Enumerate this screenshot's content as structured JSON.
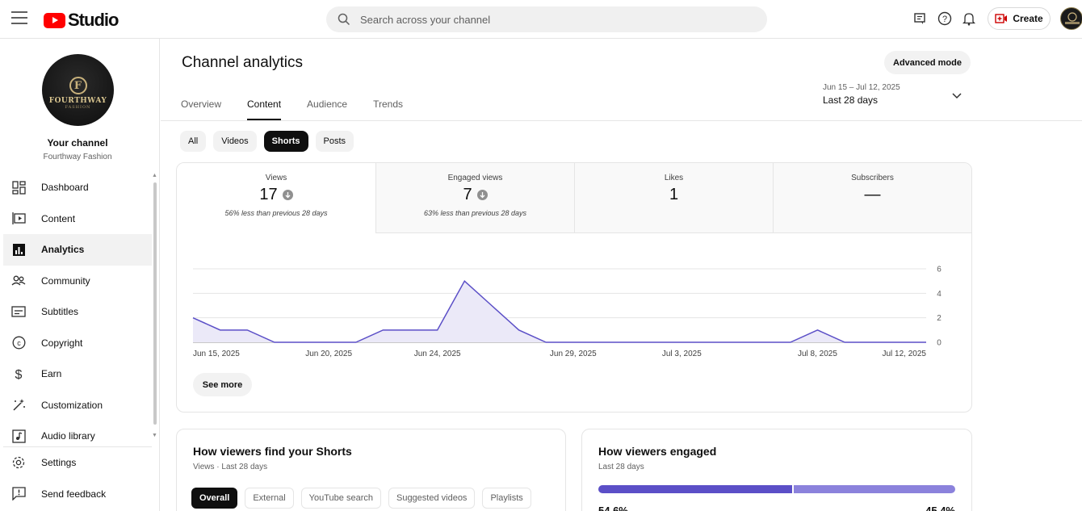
{
  "app": {
    "logo_text": "Studio"
  },
  "search": {
    "placeholder": "Search across your channel"
  },
  "topbar": {
    "create_label": "Create"
  },
  "sidebar": {
    "avatar": {
      "initial": "F",
      "name": "FOURTHWAY",
      "sub": "FASHION"
    },
    "your_channel": "Your channel",
    "channel_name": "Fourthway Fashion",
    "items": [
      {
        "label": "Dashboard",
        "icon": "dashboard-icon"
      },
      {
        "label": "Content",
        "icon": "content-icon"
      },
      {
        "label": "Analytics",
        "icon": "analytics-icon"
      },
      {
        "label": "Community",
        "icon": "community-icon"
      },
      {
        "label": "Subtitles",
        "icon": "subtitles-icon"
      },
      {
        "label": "Copyright",
        "icon": "copyright-icon"
      },
      {
        "label": "Earn",
        "icon": "earn-icon"
      },
      {
        "label": "Customization",
        "icon": "customization-icon"
      },
      {
        "label": "Audio library",
        "icon": "audio-library-icon"
      }
    ],
    "bottom": [
      {
        "label": "Settings",
        "icon": "settings-icon"
      },
      {
        "label": "Send feedback",
        "icon": "feedback-icon"
      }
    ]
  },
  "main": {
    "title": "Channel analytics",
    "advanced_mode": "Advanced mode",
    "tabs": [
      "Overview",
      "Content",
      "Audience",
      "Trends"
    ],
    "date_range": {
      "range": "Jun 15 – Jul 12, 2025",
      "label": "Last 28 days"
    },
    "content_chips": [
      "All",
      "Videos",
      "Shorts",
      "Posts"
    ],
    "metrics": [
      {
        "label": "Views",
        "value": "17",
        "note": "56% less than previous 28 days"
      },
      {
        "label": "Engaged views",
        "value": "7",
        "note": "63% less than previous 28 days"
      },
      {
        "label": "Likes",
        "value": "1",
        "note": ""
      },
      {
        "label": "Subscribers",
        "value": "—",
        "note": ""
      }
    ],
    "see_more": "See more"
  },
  "chart_data": {
    "type": "area",
    "x": [
      "Jun 15, 2025",
      "Jun 16",
      "Jun 17",
      "Jun 18",
      "Jun 19",
      "Jun 20, 2025",
      "Jun 21",
      "Jun 22",
      "Jun 23",
      "Jun 24, 2025",
      "Jun 25",
      "Jun 26",
      "Jun 27",
      "Jun 28",
      "Jun 29, 2025",
      "Jun 30",
      "Jul 1",
      "Jul 2",
      "Jul 3, 2025",
      "Jul 4",
      "Jul 5",
      "Jul 6",
      "Jul 7",
      "Jul 8, 2025",
      "Jul 9",
      "Jul 10",
      "Jul 11",
      "Jul 12, 2025"
    ],
    "values": [
      2,
      1,
      1,
      0,
      0,
      0,
      0,
      1,
      1,
      1,
      5,
      3,
      1,
      0,
      0,
      0,
      0,
      0,
      0,
      0,
      0,
      0,
      0,
      1,
      0,
      0,
      0,
      0
    ],
    "x_ticks": [
      "Jun 15, 2025",
      "Jun 20, 2025",
      "Jun 24, 2025",
      "Jun 29, 2025",
      "Jul 3, 2025",
      "Jul 8, 2025",
      "Jul 12, 2025"
    ],
    "y_ticks": [
      "6",
      "4",
      "2",
      "0"
    ],
    "ylim": [
      0,
      6
    ],
    "color": "#5b4fc7",
    "fill": "#ebe9f8"
  },
  "find_shorts": {
    "title": "How viewers find your Shorts",
    "subtitle": "Views · Last 28 days",
    "chips": [
      "Overall",
      "External",
      "YouTube search",
      "Suggested videos",
      "Playlists"
    ]
  },
  "engaged": {
    "title": "How viewers engaged",
    "subtitle": "Last 28 days",
    "split": [
      54.6,
      45.4
    ],
    "pct_a": "54.6%",
    "pct_b": "45.4%"
  }
}
